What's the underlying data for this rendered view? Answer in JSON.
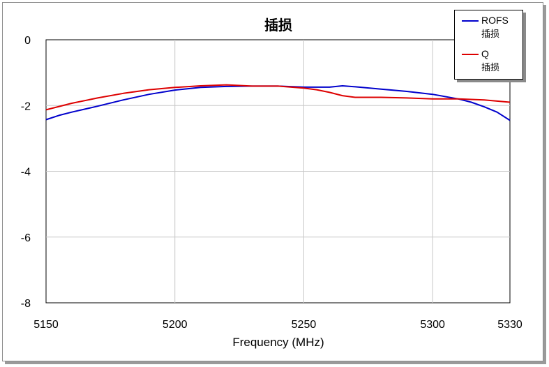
{
  "chart_data": {
    "type": "line",
    "title": "插损",
    "xlabel": "Frequency (MHz)",
    "ylabel": "",
    "xlim": [
      5150,
      5330
    ],
    "ylim": [
      -8,
      0
    ],
    "xticks": [
      5150,
      5200,
      5250,
      5300,
      5330
    ],
    "yticks": [
      0,
      -2,
      -4,
      -6,
      -8
    ],
    "grid": true,
    "legend_position": "top-right",
    "series": [
      {
        "name": "ROFS",
        "sub": "插损",
        "color": "#0000cc",
        "x": [
          5150,
          5155,
          5160,
          5170,
          5180,
          5190,
          5200,
          5210,
          5220,
          5230,
          5240,
          5250,
          5255,
          5260,
          5265,
          5270,
          5280,
          5290,
          5300,
          5310,
          5315,
          5320,
          5325,
          5330
        ],
        "y": [
          -2.43,
          -2.3,
          -2.2,
          -2.02,
          -1.83,
          -1.66,
          -1.53,
          -1.45,
          -1.42,
          -1.41,
          -1.41,
          -1.44,
          -1.44,
          -1.44,
          -1.4,
          -1.43,
          -1.5,
          -1.57,
          -1.66,
          -1.8,
          -1.9,
          -2.04,
          -2.2,
          -2.45
        ]
      },
      {
        "name": "Q",
        "sub": "插损",
        "color": "#dd0000",
        "x": [
          5150,
          5160,
          5170,
          5180,
          5190,
          5200,
          5210,
          5220,
          5230,
          5240,
          5250,
          5255,
          5260,
          5265,
          5270,
          5280,
          5290,
          5300,
          5310,
          5320,
          5330
        ],
        "y": [
          -2.13,
          -1.93,
          -1.77,
          -1.63,
          -1.52,
          -1.45,
          -1.4,
          -1.37,
          -1.41,
          -1.41,
          -1.47,
          -1.52,
          -1.6,
          -1.7,
          -1.75,
          -1.75,
          -1.77,
          -1.8,
          -1.8,
          -1.83,
          -1.9
        ]
      }
    ]
  }
}
